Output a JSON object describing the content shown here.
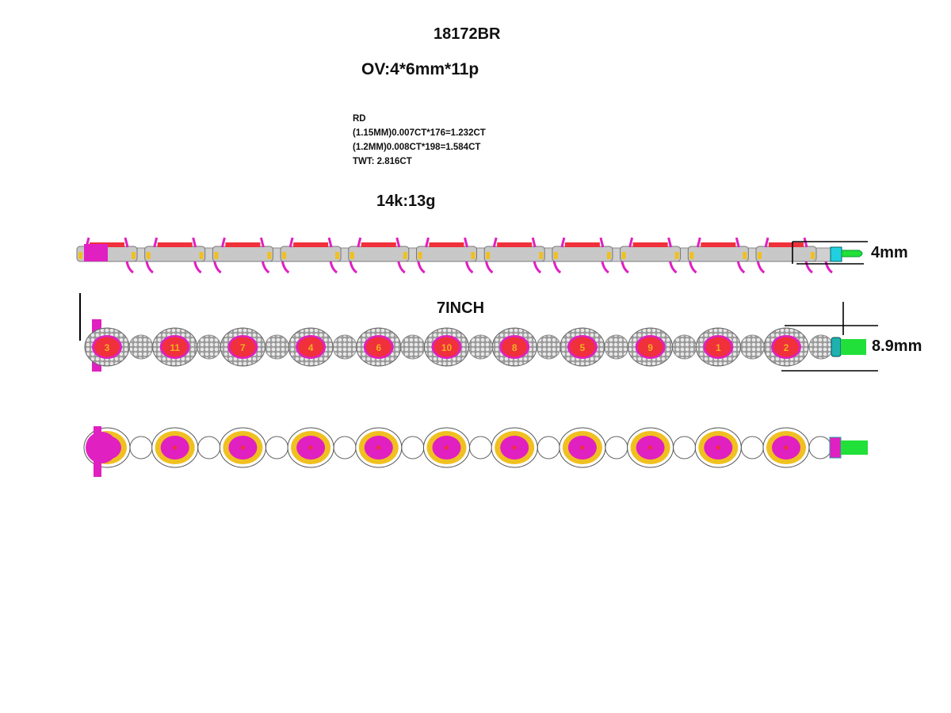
{
  "title": "18172BR",
  "center_stone": "OV:4*6mm*11p",
  "side_stones": {
    "label": "RD",
    "lines": [
      "(1.15MM)0.007CT*176=1.232CT",
      "(1.2MM)0.008CT*198=1.584CT",
      "TWT:  2.816CT"
    ]
  },
  "metal_weight": "14k:13g",
  "length_label": "7INCH",
  "dimensions": {
    "height_label": "4mm",
    "width_label": "8.9mm"
  },
  "stone_numbers": [
    "3",
    "11",
    "7",
    "4",
    "6",
    "10",
    "8",
    "5",
    "9",
    "1",
    "2"
  ],
  "colors": {
    "gem_top": "#f0303a",
    "gem_setting": "#e020c0",
    "metal_white": "#d0d0d0",
    "metal_yellow": "#f0c020",
    "clasp_green": "#22e03a",
    "clasp_cyan": "#20d0e0",
    "stone_number": "#f0b020"
  }
}
